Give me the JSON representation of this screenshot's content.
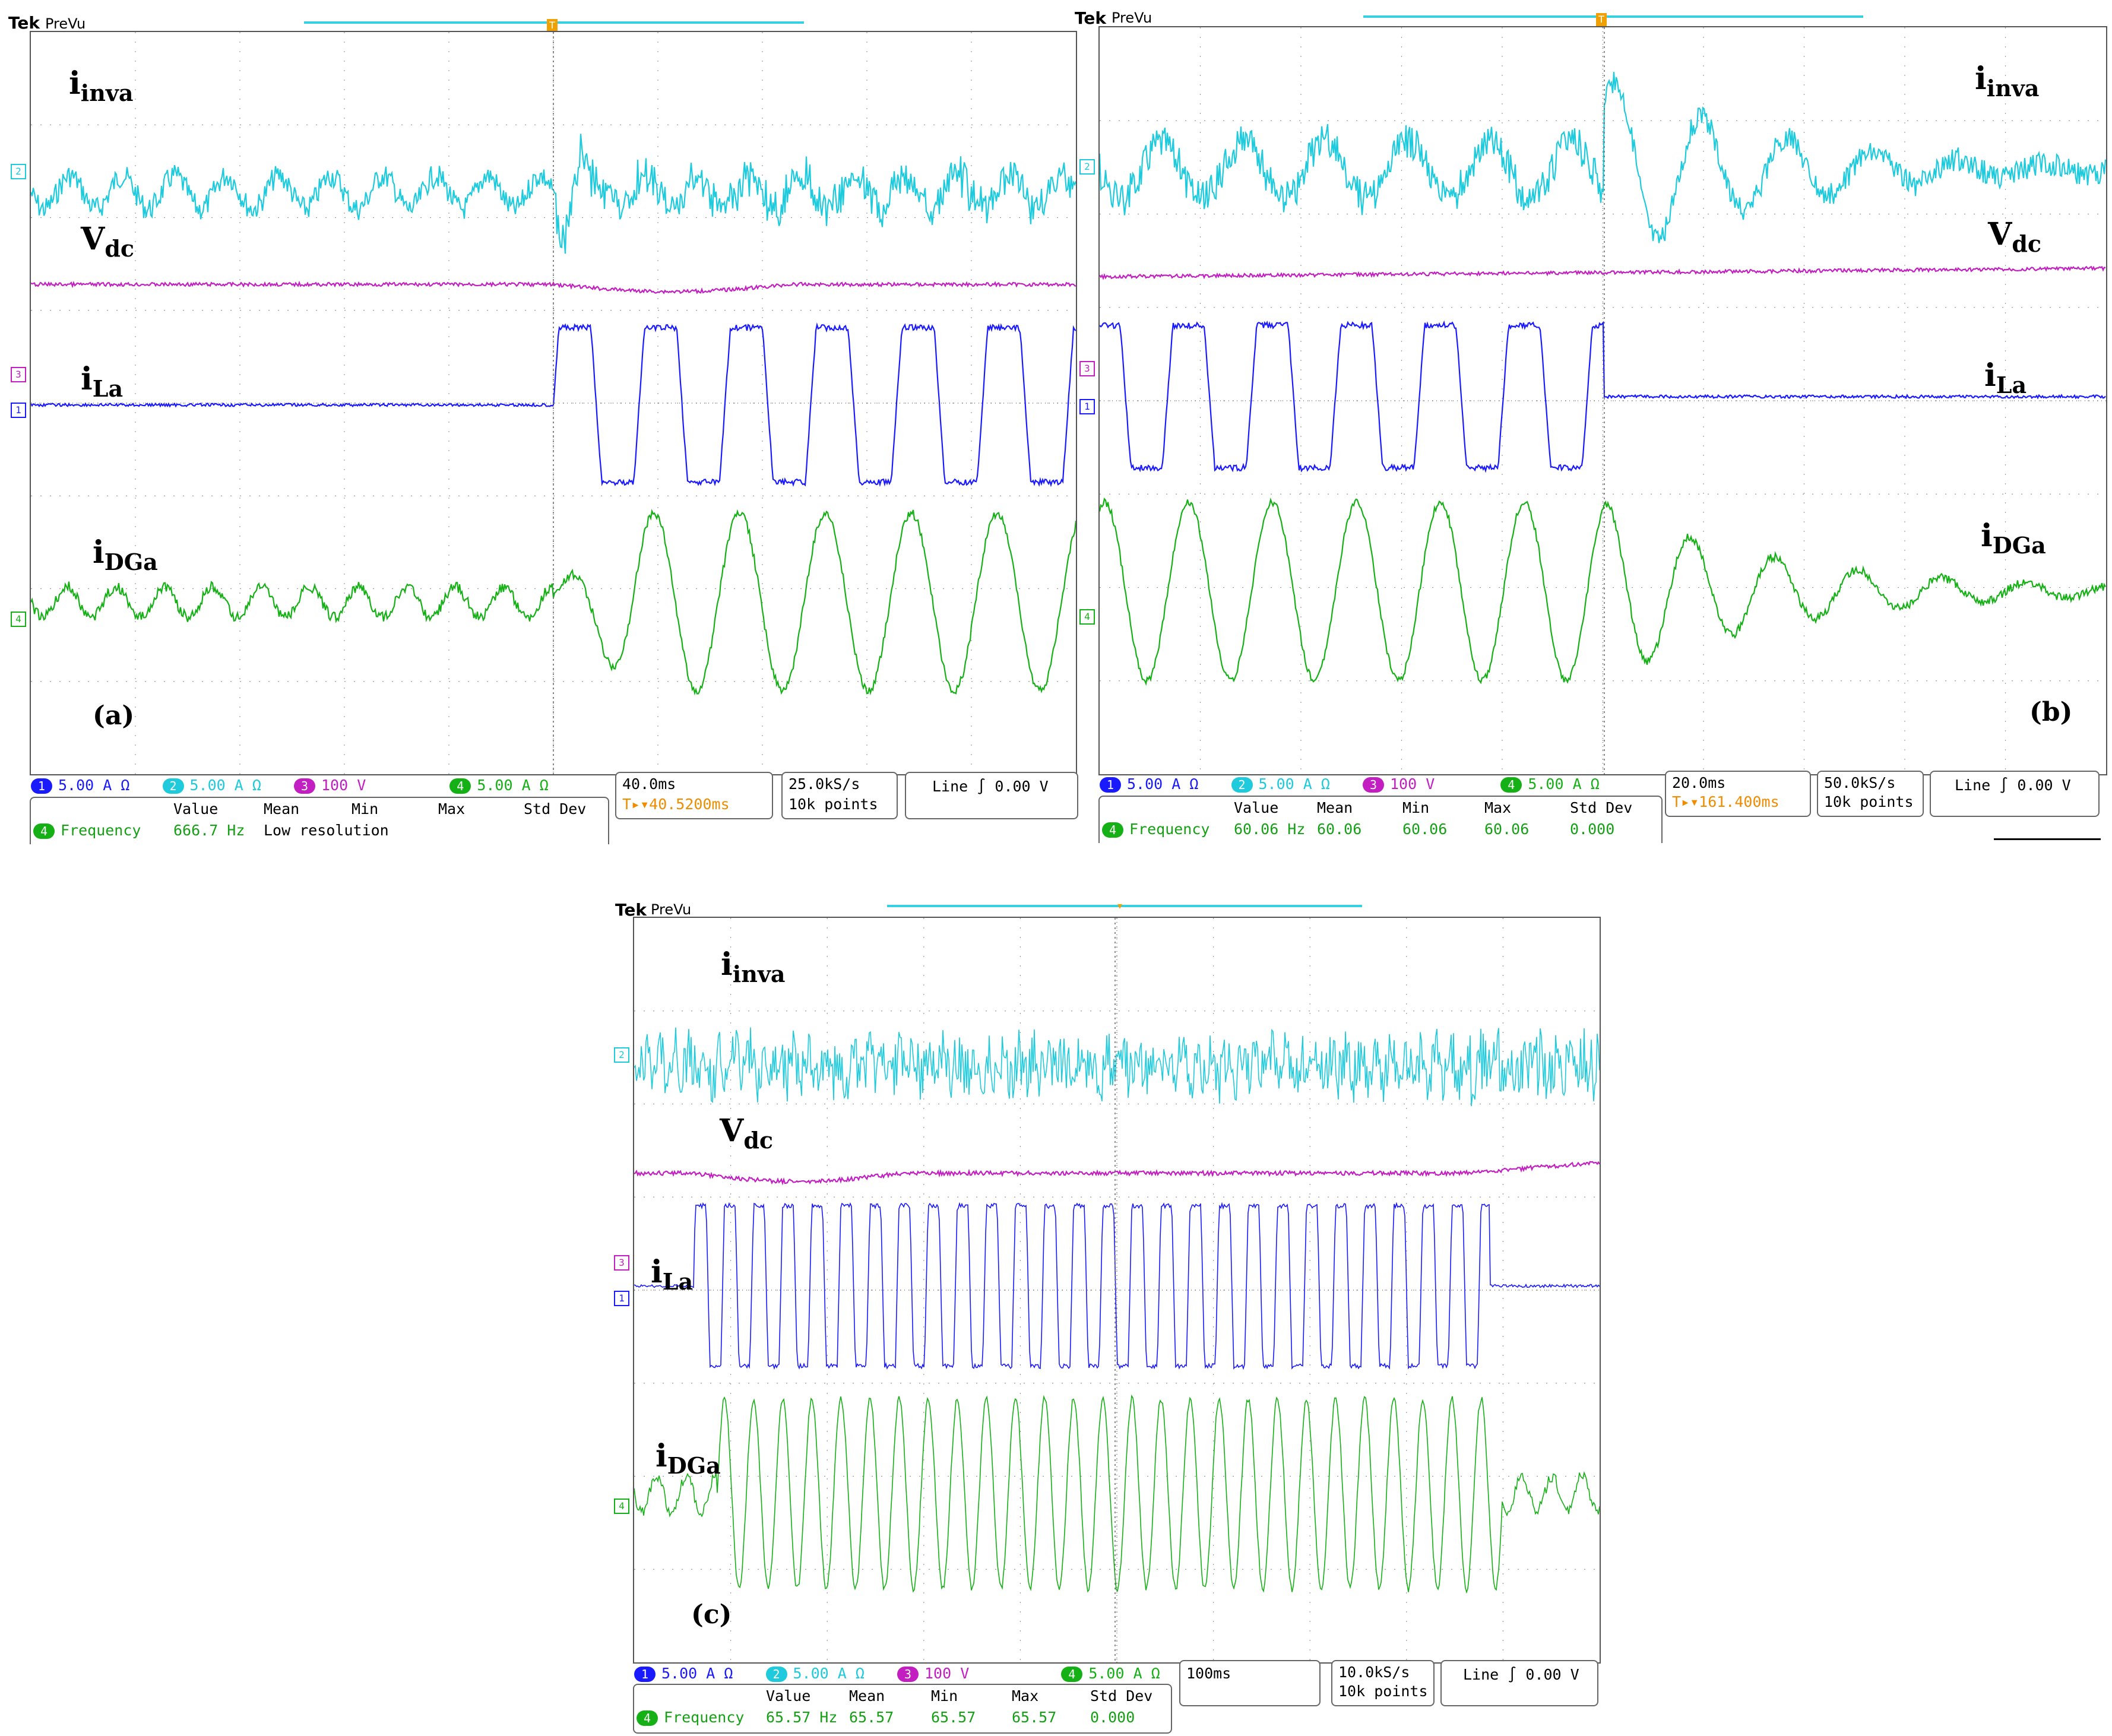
{
  "colors": {
    "ch1": "#1a1aff",
    "ch2": "#1ecadb",
    "ch3": "#c21ec2",
    "ch4": "#15b015",
    "trigger": "#f0a000",
    "grid": "#9a9a9a"
  },
  "scopes": [
    {
      "brand": "Tek",
      "mode": "PreVu",
      "panel_label": "(a)",
      "labels": {
        "inv": {
          "main": "i",
          "sub": "inva"
        },
        "vdc": {
          "main": "V",
          "sub": "dc"
        },
        "il": {
          "main": "i",
          "sub": "La"
        },
        "idg": {
          "main": "i",
          "sub": "DGa"
        }
      },
      "channels": [
        {
          "num": "1",
          "scale": "5.00 A",
          "unit": "Ω"
        },
        {
          "num": "2",
          "scale": "5.00 A",
          "unit": "Ω"
        },
        {
          "num": "3",
          "scale": "100 V",
          "unit": ""
        },
        {
          "num": "4",
          "scale": "5.00 A",
          "unit": "Ω"
        }
      ],
      "timebase": "40.0ms",
      "trigger_pos": "40.5200ms",
      "sample_rate": "25.0kS/s",
      "record": "10k points",
      "trigger_source": "Line",
      "trigger_slope": "∫",
      "trigger_level": "0.00 V",
      "measure_headers": [
        "Value",
        "Mean",
        "Min",
        "Max",
        "Std Dev"
      ],
      "measure": {
        "ch": "4",
        "name": "Frequency",
        "value": "666.7 Hz",
        "mean": "Low resolution",
        "min": "",
        "max": "",
        "std": ""
      }
    },
    {
      "brand": "Tek",
      "mode": "PreVu",
      "panel_label": "(b)",
      "labels": {
        "inv": {
          "main": "i",
          "sub": "inva"
        },
        "vdc": {
          "main": "V",
          "sub": "dc"
        },
        "il": {
          "main": "i",
          "sub": "La"
        },
        "idg": {
          "main": "i",
          "sub": "DGa"
        }
      },
      "channels": [
        {
          "num": "1",
          "scale": "5.00 A",
          "unit": "Ω"
        },
        {
          "num": "2",
          "scale": "5.00 A",
          "unit": "Ω"
        },
        {
          "num": "3",
          "scale": "100 V",
          "unit": ""
        },
        {
          "num": "4",
          "scale": "5.00 A",
          "unit": "Ω"
        }
      ],
      "timebase": "20.0ms",
      "trigger_pos": "161.400ms",
      "sample_rate": "50.0kS/s",
      "record": "10k points",
      "trigger_source": "Line",
      "trigger_slope": "∫",
      "trigger_level": "0.00 V",
      "measure_headers": [
        "Value",
        "Mean",
        "Min",
        "Max",
        "Std Dev"
      ],
      "measure": {
        "ch": "4",
        "name": "Frequency",
        "value": "60.06 Hz",
        "mean": "60.06",
        "min": "60.06",
        "max": "60.06",
        "std": "0.000"
      }
    },
    {
      "brand": "Tek",
      "mode": "PreVu",
      "panel_label": "(c)",
      "labels": {
        "inv": {
          "main": "i",
          "sub": "inva"
        },
        "vdc": {
          "main": "V",
          "sub": "dc"
        },
        "il": {
          "main": "i",
          "sub": "La"
        },
        "idg": {
          "main": "i",
          "sub": "DGa"
        }
      },
      "channels": [
        {
          "num": "1",
          "scale": "5.00 A",
          "unit": "Ω"
        },
        {
          "num": "2",
          "scale": "5.00 A",
          "unit": "Ω"
        },
        {
          "num": "3",
          "scale": "100 V",
          "unit": ""
        },
        {
          "num": "4",
          "scale": "5.00 A",
          "unit": "Ω"
        }
      ],
      "timebase": "100ms",
      "trigger_pos": "",
      "sample_rate": "10.0kS/s",
      "record": "10k points",
      "trigger_source": "Line",
      "trigger_slope": "∫",
      "trigger_level": "0.00 V",
      "measure_headers": [
        "Value",
        "Mean",
        "Min",
        "Max",
        "Std Dev"
      ],
      "measure": {
        "ch": "4",
        "name": "Frequency",
        "value": "65.57 Hz",
        "mean": "65.57",
        "min": "65.57",
        "max": "65.57",
        "std": "0.000"
      }
    }
  ]
}
